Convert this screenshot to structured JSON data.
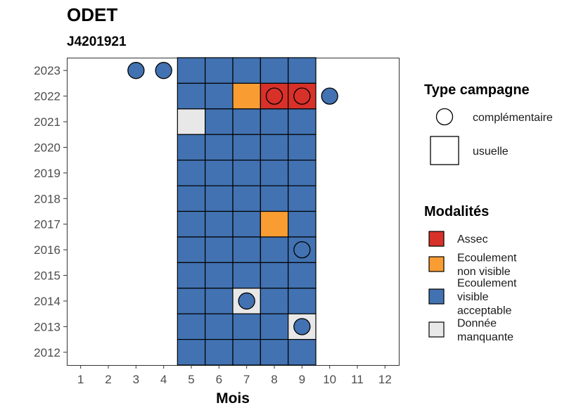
{
  "chart_data": {
    "type": "heatmap",
    "title": "ODET",
    "subtitle": "J4201921",
    "xlabel": "Mois",
    "ylabel": "",
    "x_ticks": [
      1,
      2,
      3,
      4,
      5,
      6,
      7,
      8,
      9,
      10,
      11,
      12
    ],
    "y_ticks": [
      2012,
      2013,
      2014,
      2015,
      2016,
      2017,
      2018,
      2019,
      2020,
      2021,
      2022,
      2023
    ],
    "xlim": [
      0.5,
      12.5
    ],
    "ylim": [
      2011.5,
      2023.5
    ],
    "grid": false,
    "legend_position": "right",
    "categories": {
      "assec": {
        "label": "Assec",
        "color": "#d7312a"
      },
      "ecoulement_non_visible": {
        "label": "Ecoulement\nnon visible",
        "color": "#f99d33"
      },
      "ecoulement_visible_acceptable": {
        "label": "Ecoulement\nvisible\nacceptable",
        "color": "#4272b1"
      },
      "donnee_manquante": {
        "label": "Donnée\nmanquante",
        "color": "#e8e8e8"
      }
    },
    "legend_modalites_title": "Modalités",
    "legend_modalites_order": [
      "assec",
      "ecoulement_non_visible",
      "ecoulement_visible_acceptable",
      "donnee_manquante"
    ],
    "legend_type_title": "Type campagne",
    "legend_type_items": [
      {
        "shape": "circle",
        "label": "complémentaire"
      },
      {
        "shape": "square",
        "label": "usuelle"
      }
    ],
    "usuelle": [
      {
        "year": 2023,
        "month": 5,
        "cat": "ecoulement_visible_acceptable"
      },
      {
        "year": 2023,
        "month": 6,
        "cat": "ecoulement_visible_acceptable"
      },
      {
        "year": 2023,
        "month": 7,
        "cat": "ecoulement_visible_acceptable"
      },
      {
        "year": 2023,
        "month": 8,
        "cat": "ecoulement_visible_acceptable"
      },
      {
        "year": 2023,
        "month": 9,
        "cat": "ecoulement_visible_acceptable"
      },
      {
        "year": 2022,
        "month": 5,
        "cat": "ecoulement_visible_acceptable"
      },
      {
        "year": 2022,
        "month": 6,
        "cat": "ecoulement_visible_acceptable"
      },
      {
        "year": 2022,
        "month": 7,
        "cat": "ecoulement_non_visible"
      },
      {
        "year": 2022,
        "month": 8,
        "cat": "assec"
      },
      {
        "year": 2022,
        "month": 9,
        "cat": "assec"
      },
      {
        "year": 2021,
        "month": 5,
        "cat": "donnee_manquante"
      },
      {
        "year": 2021,
        "month": 6,
        "cat": "ecoulement_visible_acceptable"
      },
      {
        "year": 2021,
        "month": 7,
        "cat": "ecoulement_visible_acceptable"
      },
      {
        "year": 2021,
        "month": 8,
        "cat": "ecoulement_visible_acceptable"
      },
      {
        "year": 2021,
        "month": 9,
        "cat": "ecoulement_visible_acceptable"
      },
      {
        "year": 2020,
        "month": 5,
        "cat": "ecoulement_visible_acceptable"
      },
      {
        "year": 2020,
        "month": 6,
        "cat": "ecoulement_visible_acceptable"
      },
      {
        "year": 2020,
        "month": 7,
        "cat": "ecoulement_visible_acceptable"
      },
      {
        "year": 2020,
        "month": 8,
        "cat": "ecoulement_visible_acceptable"
      },
      {
        "year": 2020,
        "month": 9,
        "cat": "ecoulement_visible_acceptable"
      },
      {
        "year": 2019,
        "month": 5,
        "cat": "ecoulement_visible_acceptable"
      },
      {
        "year": 2019,
        "month": 6,
        "cat": "ecoulement_visible_acceptable"
      },
      {
        "year": 2019,
        "month": 7,
        "cat": "ecoulement_visible_acceptable"
      },
      {
        "year": 2019,
        "month": 8,
        "cat": "ecoulement_visible_acceptable"
      },
      {
        "year": 2019,
        "month": 9,
        "cat": "ecoulement_visible_acceptable"
      },
      {
        "year": 2018,
        "month": 5,
        "cat": "ecoulement_visible_acceptable"
      },
      {
        "year": 2018,
        "month": 6,
        "cat": "ecoulement_visible_acceptable"
      },
      {
        "year": 2018,
        "month": 7,
        "cat": "ecoulement_visible_acceptable"
      },
      {
        "year": 2018,
        "month": 8,
        "cat": "ecoulement_visible_acceptable"
      },
      {
        "year": 2018,
        "month": 9,
        "cat": "ecoulement_visible_acceptable"
      },
      {
        "year": 2017,
        "month": 5,
        "cat": "ecoulement_visible_acceptable"
      },
      {
        "year": 2017,
        "month": 6,
        "cat": "ecoulement_visible_acceptable"
      },
      {
        "year": 2017,
        "month": 7,
        "cat": "ecoulement_visible_acceptable"
      },
      {
        "year": 2017,
        "month": 8,
        "cat": "ecoulement_non_visible"
      },
      {
        "year": 2017,
        "month": 9,
        "cat": "ecoulement_visible_acceptable"
      },
      {
        "year": 2016,
        "month": 5,
        "cat": "ecoulement_visible_acceptable"
      },
      {
        "year": 2016,
        "month": 6,
        "cat": "ecoulement_visible_acceptable"
      },
      {
        "year": 2016,
        "month": 7,
        "cat": "ecoulement_visible_acceptable"
      },
      {
        "year": 2016,
        "month": 8,
        "cat": "ecoulement_visible_acceptable"
      },
      {
        "year": 2016,
        "month": 9,
        "cat": "ecoulement_visible_acceptable"
      },
      {
        "year": 2015,
        "month": 5,
        "cat": "ecoulement_visible_acceptable"
      },
      {
        "year": 2015,
        "month": 6,
        "cat": "ecoulement_visible_acceptable"
      },
      {
        "year": 2015,
        "month": 7,
        "cat": "ecoulement_visible_acceptable"
      },
      {
        "year": 2015,
        "month": 8,
        "cat": "ecoulement_visible_acceptable"
      },
      {
        "year": 2015,
        "month": 9,
        "cat": "ecoulement_visible_acceptable"
      },
      {
        "year": 2014,
        "month": 5,
        "cat": "ecoulement_visible_acceptable"
      },
      {
        "year": 2014,
        "month": 6,
        "cat": "ecoulement_visible_acceptable"
      },
      {
        "year": 2014,
        "month": 7,
        "cat": "donnee_manquante"
      },
      {
        "year": 2014,
        "month": 8,
        "cat": "ecoulement_visible_acceptable"
      },
      {
        "year": 2014,
        "month": 9,
        "cat": "ecoulement_visible_acceptable"
      },
      {
        "year": 2013,
        "month": 5,
        "cat": "ecoulement_visible_acceptable"
      },
      {
        "year": 2013,
        "month": 6,
        "cat": "ecoulement_visible_acceptable"
      },
      {
        "year": 2013,
        "month": 7,
        "cat": "ecoulement_visible_acceptable"
      },
      {
        "year": 2013,
        "month": 8,
        "cat": "ecoulement_visible_acceptable"
      },
      {
        "year": 2013,
        "month": 9,
        "cat": "donnee_manquante"
      },
      {
        "year": 2012,
        "month": 5,
        "cat": "ecoulement_visible_acceptable"
      },
      {
        "year": 2012,
        "month": 6,
        "cat": "ecoulement_visible_acceptable"
      },
      {
        "year": 2012,
        "month": 7,
        "cat": "ecoulement_visible_acceptable"
      },
      {
        "year": 2012,
        "month": 8,
        "cat": "ecoulement_visible_acceptable"
      },
      {
        "year": 2012,
        "month": 9,
        "cat": "ecoulement_visible_acceptable"
      }
    ],
    "complementaire": [
      {
        "year": 2023,
        "month": 3,
        "cat": "ecoulement_visible_acceptable"
      },
      {
        "year": 2023,
        "month": 4,
        "cat": "ecoulement_visible_acceptable"
      },
      {
        "year": 2022,
        "month": 8,
        "cat": "assec"
      },
      {
        "year": 2022,
        "month": 9,
        "cat": "assec"
      },
      {
        "year": 2022,
        "month": 10,
        "cat": "ecoulement_visible_acceptable"
      },
      {
        "year": 2016,
        "month": 9,
        "cat": "ecoulement_visible_acceptable"
      },
      {
        "year": 2014,
        "month": 7,
        "cat": "ecoulement_visible_acceptable"
      },
      {
        "year": 2013,
        "month": 9,
        "cat": "ecoulement_visible_acceptable"
      }
    ]
  }
}
